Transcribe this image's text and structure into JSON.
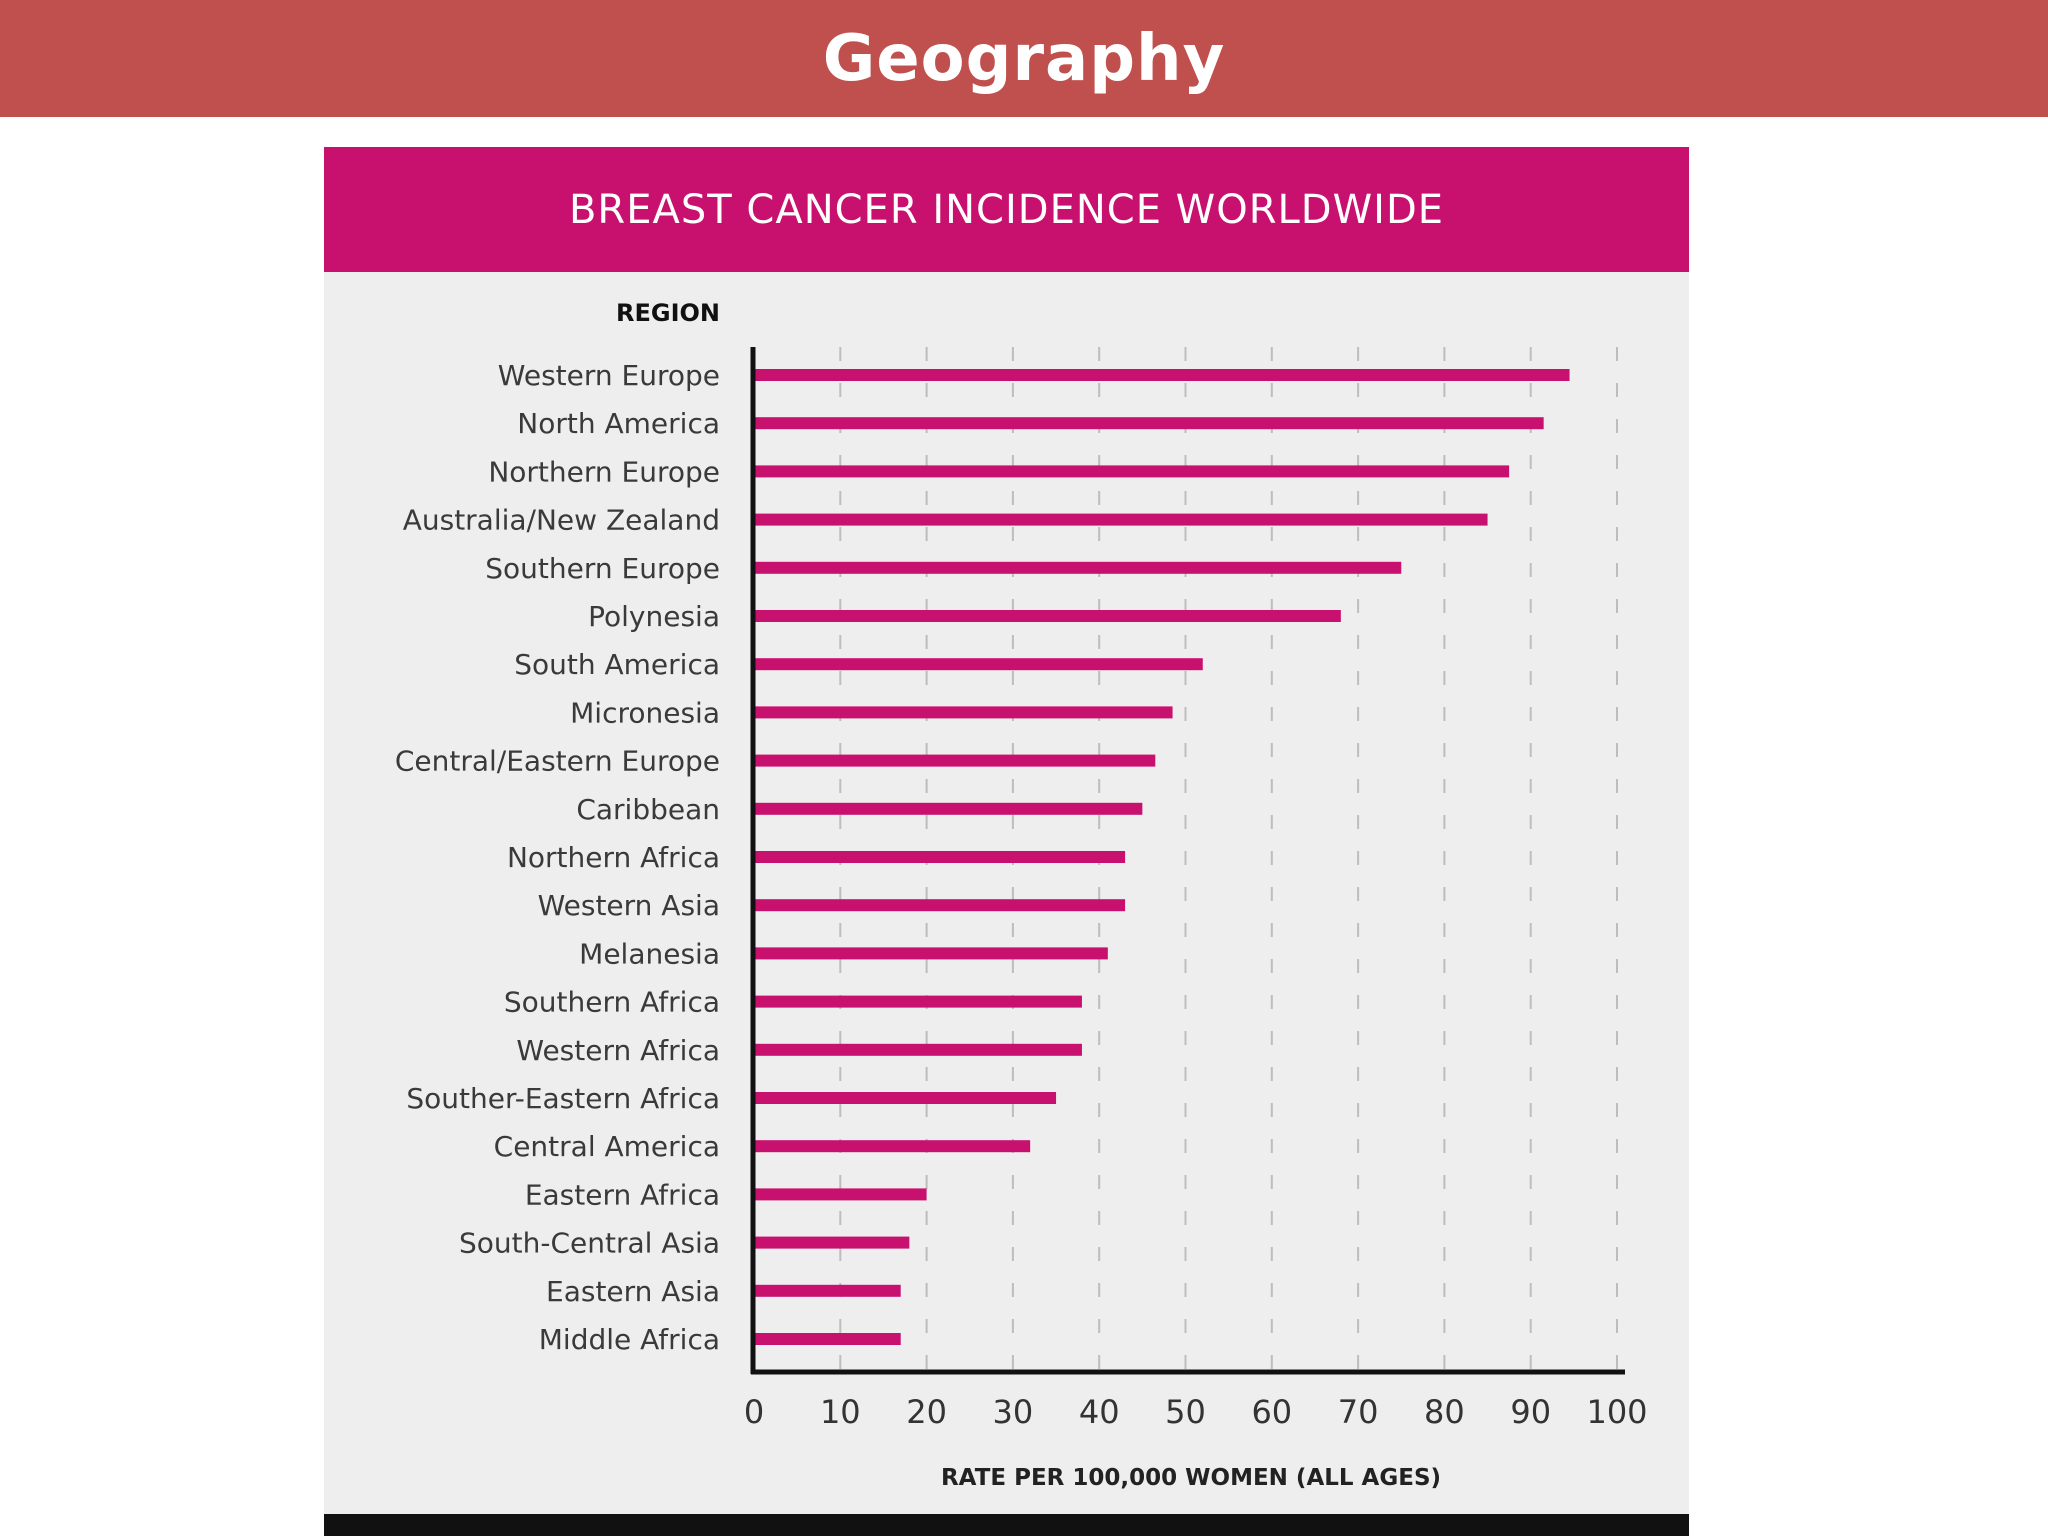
{
  "slide": {
    "title": "Geography"
  },
  "colors": {
    "header": "#c0504d",
    "banner": "#c8106f",
    "bar": "#c8106f",
    "panel": "#efeeef"
  },
  "chart_data": {
    "type": "bar",
    "orientation": "horizontal",
    "title": "BREAST CANCER INCIDENCE WORLDWIDE",
    "category_axis_label": "REGION",
    "xlabel": "RATE PER 100,000 WOMEN (ALL AGES)",
    "xlim": [
      0,
      100
    ],
    "x_ticks": [
      "0",
      "10",
      "20",
      "30",
      "40",
      "50",
      "60",
      "70",
      "80",
      "90",
      "100"
    ],
    "grid": "vertical dashed",
    "categories": [
      "Western Europe",
      "North America",
      "Northern Europe",
      "Australia/New Zealand",
      "Southern Europe",
      "Polynesia",
      "South America",
      "Micronesia",
      "Central/Eastern Europe",
      "Caribbean",
      "Northern Africa",
      "Western Asia",
      "Melanesia",
      "Southern Africa",
      "Western Africa",
      "Souther-Eastern Africa",
      "Central America",
      "Eastern Africa",
      "South-Central Asia",
      "Eastern Asia",
      "Middle Africa"
    ],
    "values": [
      94.5,
      91.5,
      87.5,
      85,
      75,
      68,
      52,
      48.5,
      46.5,
      45,
      43,
      43,
      41,
      38,
      38,
      35,
      32,
      20,
      18,
      17,
      17
    ]
  }
}
